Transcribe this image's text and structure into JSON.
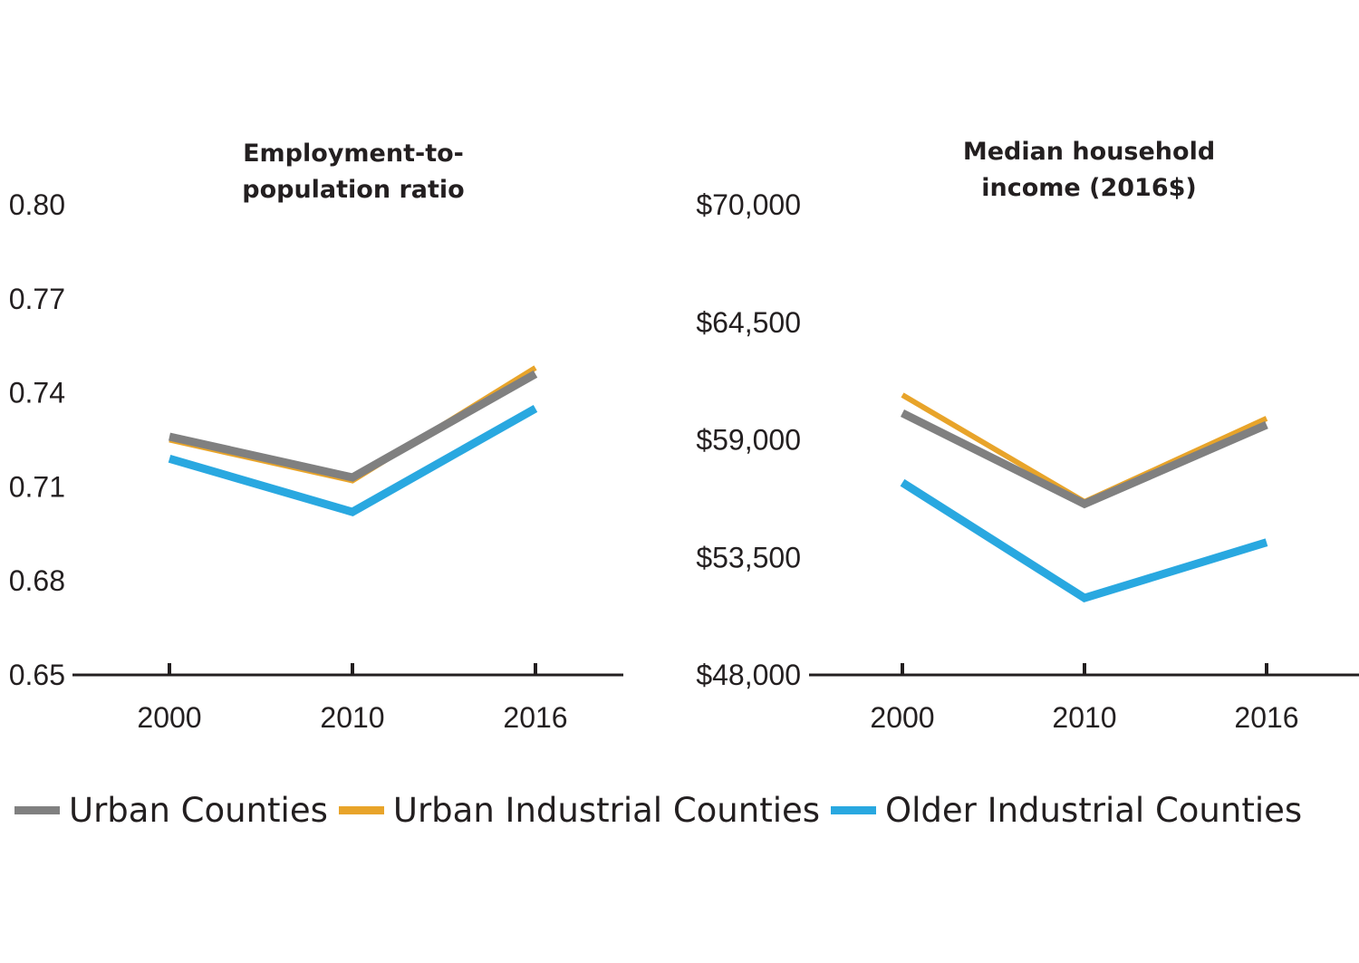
{
  "chart_data": [
    {
      "type": "line",
      "title_lines": [
        "Employment-to-",
        "population ratio"
      ],
      "categories": [
        "2000",
        "2010",
        "2016"
      ],
      "ylim": [
        0.65,
        0.8
      ],
      "yticks": [
        "0.80",
        "0.77",
        "0.74",
        "0.71",
        "0.68",
        "0.65"
      ],
      "series": [
        {
          "name": "Urban Counties",
          "color": "#808080",
          "values": [
            0.726,
            0.713,
            0.746
          ]
        },
        {
          "name": "Urban Industrial Counties",
          "color": "#e8a42a",
          "values": [
            0.725,
            0.712,
            0.748
          ]
        },
        {
          "name": "Older Industrial Counties",
          "color": "#29a8e0",
          "values": [
            0.719,
            0.702,
            0.735
          ]
        }
      ]
    },
    {
      "type": "line",
      "title_lines": [
        "Median household",
        "income (2016$)"
      ],
      "categories": [
        "2000",
        "2010",
        "2016"
      ],
      "ylim": [
        48000,
        70000
      ],
      "yticks": [
        "$70,000",
        "$64,500",
        "$59,000",
        "$53,500",
        "$48,000"
      ],
      "series": [
        {
          "name": "Urban Counties",
          "color": "#808080",
          "values": [
            60250,
            56000,
            59700
          ]
        },
        {
          "name": "Urban Industrial Counties",
          "color": "#e8a42a",
          "values": [
            61100,
            56100,
            60000
          ]
        },
        {
          "name": "Older Industrial Counties",
          "color": "#29a8e0",
          "values": [
            57000,
            51600,
            54200
          ]
        }
      ]
    }
  ],
  "legend": [
    {
      "label": "Urban Counties",
      "color": "#808080"
    },
    {
      "label": "Urban Industrial Counties",
      "color": "#e8a42a"
    },
    {
      "label": "Older Industrial Counties",
      "color": "#29a8e0"
    }
  ]
}
